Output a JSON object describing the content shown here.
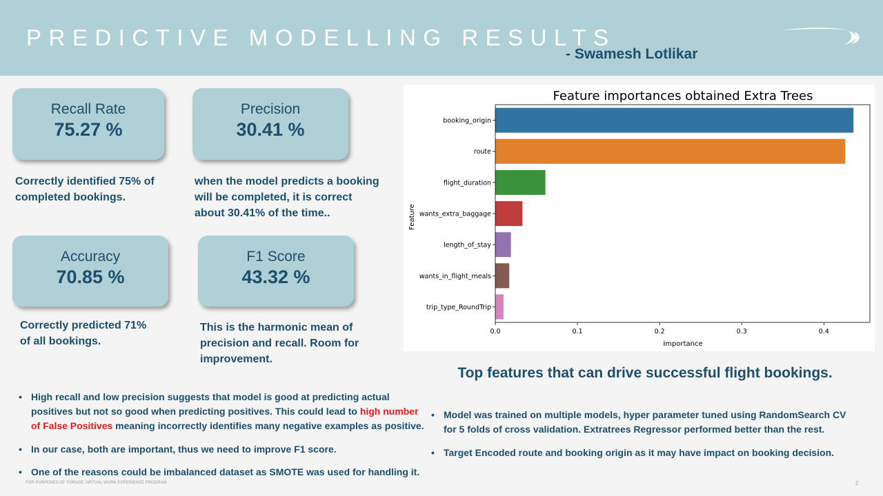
{
  "header": {
    "title": "PREDICTIVE MODELLING RESULTS",
    "author": "- Swamesh Lotlikar"
  },
  "metrics": [
    {
      "label": "Recall Rate",
      "value": "75.27 %",
      "desc": [
        "Correctly identified 75% of",
        "completed bookings."
      ]
    },
    {
      "label": "Precision",
      "value": "30.41 %",
      "desc": [
        "when the model predicts a booking",
        "will be completed, it is correct",
        "about 30.41% of the time.."
      ]
    },
    {
      "label": "Accuracy",
      "value": "70.85 %",
      "desc": [
        "Correctly predicted 71%",
        "of all bookings."
      ]
    },
    {
      "label": "F1 Score",
      "value": "43.32 %",
      "desc": [
        "This is the harmonic mean of",
        "precision and recall. Room for",
        "improvement."
      ]
    }
  ],
  "chart_data": {
    "type": "bar",
    "orientation": "horizontal",
    "title": "Feature importances obtained Extra Trees",
    "xlabel": "Importance",
    "ylabel": "Feature",
    "categories": [
      "booking_origin",
      "route",
      "flight_duration",
      "wants_extra_baggage",
      "length_of_stay",
      "wants_in_flight_meals",
      "trip_type_RoundTrip"
    ],
    "values": [
      0.436,
      0.426,
      0.061,
      0.033,
      0.019,
      0.017,
      0.01
    ],
    "colors": [
      "#3274a1",
      "#e1812c",
      "#3a923a",
      "#c03d3e",
      "#9372b2",
      "#845b53",
      "#d684bd"
    ],
    "xlim": [
      0,
      0.456
    ],
    "xticks": [
      0.0,
      0.1,
      0.2,
      0.3,
      0.4
    ],
    "xtick_labels": [
      "0.0",
      "0.1",
      "0.2",
      "0.3",
      "0.4"
    ]
  },
  "chart_caption": "Top features that can drive successful flight bookings.",
  "left_bullets": {
    "b1_part1": "High recall and low precision  suggests that model is good at predicting actual positives but not so good when predicting positives. This could lead to ",
    "b1_highlight": "high number of False Positives",
    "b1_part2": " meaning incorrectly identifies many negative examples as positive.",
    "b2": "In our case, both are important, thus we need to improve F1 score.",
    "b3": "One of the reasons could be imbalanced dataset as SMOTE was used for handling it."
  },
  "right_bullets": {
    "b1": "Model was trained on multiple models, hyper parameter tuned using RandomSearch CV for 5 folds of cross validation. Extratrees Regressor performed better than the rest.",
    "b2": "Target Encoded route and booking origin as it may have impact on booking decision."
  },
  "bullet_char": "•",
  "footer": "FOR PURPOSES OF FORAGE VIRTUAL WORK EXPERIENCE PROGRAM",
  "page_number": "2"
}
